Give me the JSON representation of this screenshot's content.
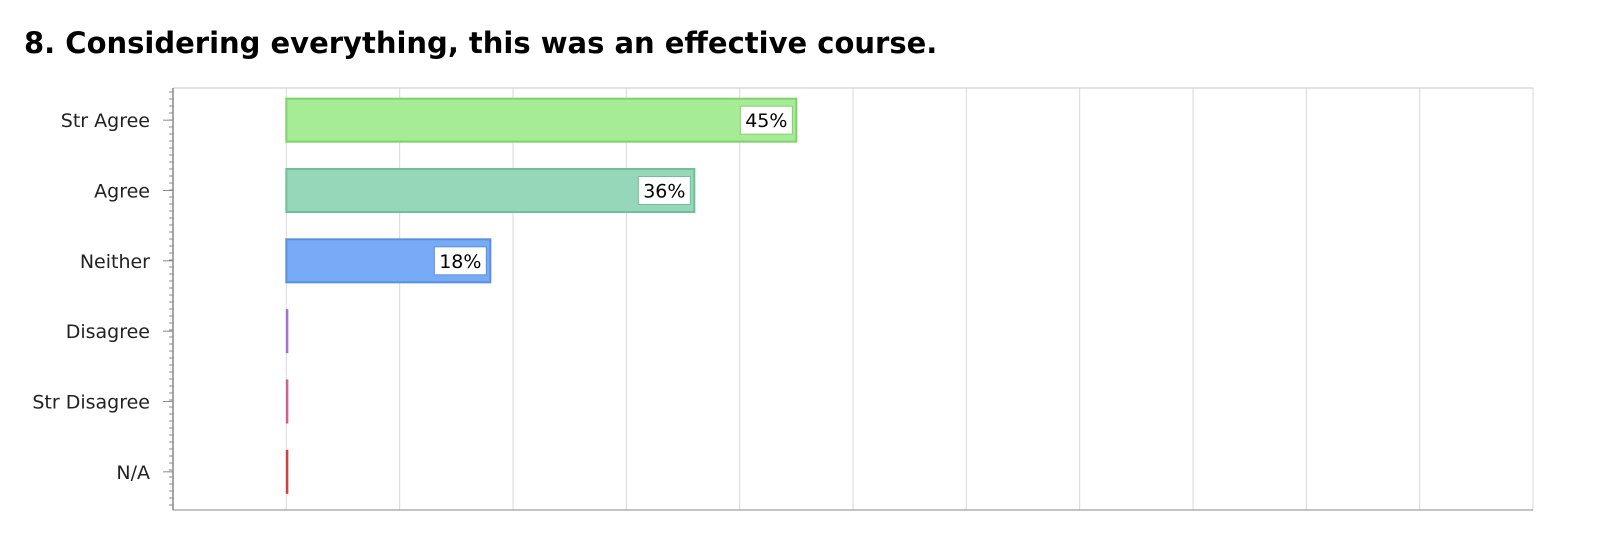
{
  "chart_data": {
    "type": "bar",
    "orientation": "horizontal",
    "title": "8. Considering everything, this was an effective course.",
    "xlabel": "",
    "ylabel": "",
    "categories": [
      "Str Agree",
      "Agree",
      "Neither",
      "Disagree",
      "Str Disagree",
      "N/A"
    ],
    "values": [
      45,
      36,
      18,
      0,
      0,
      0
    ],
    "value_labels": [
      "45%",
      "36%",
      "18%",
      "",
      "",
      ""
    ],
    "unit": "%",
    "xlim": [
      -10,
      110
    ],
    "grid": true,
    "colors": {
      "fills": [
        "#a6ec96",
        "#95d7b8",
        "#77abf7",
        "#b48be0",
        "#e07aa8",
        "#e05a5a"
      ],
      "strokes": [
        "#7fd16b",
        "#6fbf98",
        "#5a8fe0",
        "#9a6ad0",
        "#c85a8a",
        "#c83a3a"
      ],
      "grid": "#d9d9d9",
      "axis": "#888888",
      "frame": "#c8c8c8"
    }
  }
}
